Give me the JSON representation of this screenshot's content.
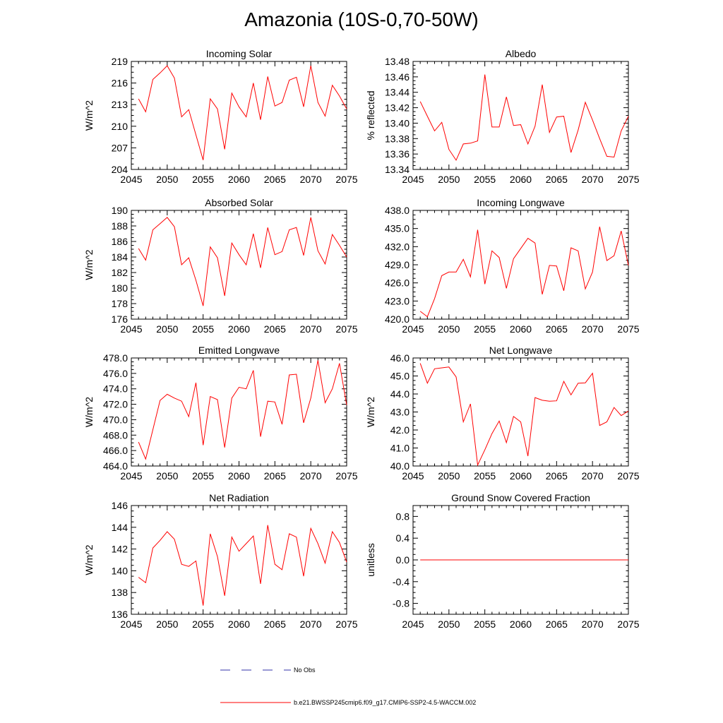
{
  "title": "Amazonia (10S-0,70-50W)",
  "legend": {
    "obs_label": "No Obs",
    "obs_color": "#3333aa",
    "model_label": "b.e21.BWSSP245cmip6.f09_g17.CMIP6-SSP2-4.5-WACCM.002",
    "model_color": "#ff0000"
  },
  "chart_data": [
    {
      "type": "line",
      "title": "Incoming Solar",
      "ylabel": "W/m^2",
      "xlim": [
        2045,
        2075
      ],
      "ylim": [
        204,
        219
      ],
      "yticks": [
        204,
        207,
        210,
        213,
        216,
        219
      ],
      "ytick_labels": [
        "204",
        "207",
        "210",
        "213",
        "216",
        "219"
      ],
      "xticks": [
        2045,
        2050,
        2055,
        2060,
        2065,
        2070,
        2075
      ],
      "xtick_labels": [
        "2045",
        "2050",
        "2055",
        "2060",
        "2065",
        "2070",
        "2075"
      ],
      "x": [
        2046,
        2047,
        2048,
        2049,
        2050,
        2051,
        2052,
        2053,
        2054,
        2055,
        2056,
        2057,
        2058,
        2059,
        2060,
        2061,
        2062,
        2063,
        2064,
        2065,
        2066,
        2067,
        2068,
        2069,
        2070,
        2071,
        2072,
        2073,
        2074,
        2075
      ],
      "values": [
        213.8,
        212.0,
        216.5,
        217.4,
        218.4,
        216.7,
        211.3,
        212.3,
        208.8,
        205.3,
        213.8,
        212.4,
        206.8,
        214.6,
        212.7,
        211.3,
        216.0,
        210.9,
        216.9,
        212.8,
        213.3,
        216.4,
        216.8,
        212.7,
        218.4,
        213.3,
        211.4,
        215.7,
        214.2,
        212.4
      ]
    },
    {
      "type": "line",
      "title": "Albedo",
      "ylabel": "% reflected",
      "xlim": [
        2045,
        2075
      ],
      "ylim": [
        13.34,
        13.48
      ],
      "yticks": [
        13.34,
        13.36,
        13.38,
        13.4,
        13.42,
        13.44,
        13.46,
        13.48
      ],
      "ytick_labels": [
        "13.34",
        "13.36",
        "13.38",
        "13.40",
        "13.42",
        "13.44",
        "13.46",
        "13.48"
      ],
      "xticks": [
        2045,
        2050,
        2055,
        2060,
        2065,
        2070,
        2075
      ],
      "xtick_labels": [
        "2045",
        "2050",
        "2055",
        "2060",
        "2065",
        "2070",
        "2075"
      ],
      "x": [
        2046,
        2047,
        2048,
        2049,
        2050,
        2051,
        2052,
        2053,
        2054,
        2055,
        2056,
        2057,
        2058,
        2059,
        2060,
        2061,
        2062,
        2063,
        2064,
        2065,
        2066,
        2067,
        2068,
        2069,
        2070,
        2071,
        2072,
        2073,
        2074,
        2075
      ],
      "values": [
        13.428,
        13.409,
        13.39,
        13.401,
        13.366,
        13.352,
        13.373,
        13.374,
        13.377,
        13.463,
        13.395,
        13.395,
        13.434,
        13.397,
        13.398,
        13.373,
        13.396,
        13.45,
        13.388,
        13.408,
        13.409,
        13.362,
        13.391,
        13.427,
        13.404,
        13.38,
        13.357,
        13.356,
        13.39,
        13.409
      ]
    },
    {
      "type": "line",
      "title": "Absorbed Solar",
      "ylabel": "W/m^2",
      "xlim": [
        2045,
        2075
      ],
      "ylim": [
        176,
        190
      ],
      "yticks": [
        176,
        178,
        180,
        182,
        184,
        186,
        188,
        190
      ],
      "ytick_labels": [
        "176",
        "178",
        "180",
        "182",
        "184",
        "186",
        "188",
        "190"
      ],
      "xticks": [
        2045,
        2050,
        2055,
        2060,
        2065,
        2070,
        2075
      ],
      "xtick_labels": [
        "2045",
        "2050",
        "2055",
        "2060",
        "2065",
        "2070",
        "2075"
      ],
      "x": [
        2046,
        2047,
        2048,
        2049,
        2050,
        2051,
        2052,
        2053,
        2054,
        2055,
        2056,
        2057,
        2058,
        2059,
        2060,
        2061,
        2062,
        2063,
        2064,
        2065,
        2066,
        2067,
        2068,
        2069,
        2070,
        2071,
        2072,
        2073,
        2074,
        2075
      ],
      "values": [
        185.1,
        183.6,
        187.5,
        188.3,
        189.1,
        187.9,
        183.0,
        183.9,
        181.0,
        177.7,
        185.3,
        183.9,
        179.0,
        185.8,
        184.3,
        183.0,
        187.0,
        182.6,
        187.8,
        184.3,
        184.7,
        187.5,
        187.8,
        184.2,
        189.1,
        184.8,
        183.1,
        186.9,
        185.5,
        184.0
      ]
    },
    {
      "type": "line",
      "title": "Incoming Longwave",
      "ylabel": "",
      "xlim": [
        2045,
        2075
      ],
      "ylim": [
        420.0,
        438.0
      ],
      "yticks": [
        420,
        423,
        426,
        429,
        432,
        435,
        438
      ],
      "ytick_labels": [
        "420.0",
        "423.0",
        "426.0",
        "429.0",
        "432.0",
        "435.0",
        "438.0"
      ],
      "xticks": [
        2045,
        2050,
        2055,
        2060,
        2065,
        2070,
        2075
      ],
      "xtick_labels": [
        "2045",
        "2050",
        "2055",
        "2060",
        "2065",
        "2070",
        "2075"
      ],
      "x": [
        2046,
        2047,
        2048,
        2049,
        2050,
        2051,
        2052,
        2053,
        2054,
        2055,
        2056,
        2057,
        2058,
        2059,
        2060,
        2061,
        2062,
        2063,
        2064,
        2065,
        2066,
        2067,
        2068,
        2069,
        2070,
        2071,
        2072,
        2073,
        2074,
        2075
      ],
      "values": [
        421.3,
        420.4,
        423.4,
        427.2,
        427.8,
        427.8,
        429.9,
        427.0,
        434.8,
        425.8,
        431.3,
        430.2,
        425.1,
        430.0,
        431.7,
        433.4,
        432.6,
        424.1,
        428.9,
        428.8,
        424.7,
        431.8,
        431.3,
        425.0,
        427.8,
        435.3,
        429.7,
        430.5,
        434.6,
        428.9
      ]
    },
    {
      "type": "line",
      "title": "Emitted Longwave",
      "ylabel": "W/m^2",
      "xlim": [
        2045,
        2075
      ],
      "ylim": [
        464.0,
        478.0
      ],
      "yticks": [
        464,
        466,
        468,
        470,
        472,
        474,
        476,
        478
      ],
      "ytick_labels": [
        "464.0",
        "466.0",
        "468.0",
        "470.0",
        "472.0",
        "474.0",
        "476.0",
        "478.0"
      ],
      "xticks": [
        2045,
        2050,
        2055,
        2060,
        2065,
        2070,
        2075
      ],
      "xtick_labels": [
        "2045",
        "2050",
        "2055",
        "2060",
        "2065",
        "2070",
        "2075"
      ],
      "x": [
        2046,
        2047,
        2048,
        2049,
        2050,
        2051,
        2052,
        2053,
        2054,
        2055,
        2056,
        2057,
        2058,
        2059,
        2060,
        2061,
        2062,
        2063,
        2064,
        2065,
        2066,
        2067,
        2068,
        2069,
        2070,
        2071,
        2072,
        2073,
        2074,
        2075
      ],
      "values": [
        467.1,
        464.9,
        468.7,
        472.5,
        473.3,
        472.8,
        472.4,
        470.4,
        474.8,
        466.7,
        473.0,
        472.6,
        466.4,
        472.8,
        474.2,
        474.0,
        476.4,
        467.8,
        472.4,
        472.3,
        469.4,
        475.8,
        475.9,
        469.6,
        472.8,
        477.7,
        472.2,
        474.0,
        477.3,
        471.9
      ]
    },
    {
      "type": "line",
      "title": "Net Longwave",
      "ylabel": "W/m^2",
      "xlim": [
        2045,
        2075
      ],
      "ylim": [
        40.0,
        46.0
      ],
      "yticks": [
        40,
        41,
        42,
        43,
        44,
        45,
        46
      ],
      "ytick_labels": [
        "40.0",
        "41.0",
        "42.0",
        "43.0",
        "44.0",
        "45.0",
        "46.0"
      ],
      "xticks": [
        2045,
        2050,
        2055,
        2060,
        2065,
        2070,
        2075
      ],
      "xtick_labels": [
        "2045",
        "2050",
        "2055",
        "2060",
        "2065",
        "2070",
        "2075"
      ],
      "x": [
        2046,
        2047,
        2048,
        2049,
        2050,
        2051,
        2052,
        2053,
        2054,
        2055,
        2056,
        2057,
        2058,
        2059,
        2060,
        2061,
        2062,
        2063,
        2064,
        2065,
        2066,
        2067,
        2068,
        2069,
        2070,
        2071,
        2072,
        2073,
        2074,
        2075
      ],
      "values": [
        45.7,
        44.6,
        45.4,
        45.45,
        45.5,
        44.95,
        42.45,
        43.45,
        40.05,
        40.9,
        41.8,
        42.5,
        41.3,
        42.75,
        42.45,
        40.55,
        43.8,
        43.65,
        43.6,
        43.62,
        44.7,
        43.95,
        44.6,
        44.62,
        45.15,
        42.25,
        42.45,
        43.25,
        42.8,
        43.05
      ]
    },
    {
      "type": "line",
      "title": "Net Radiation",
      "ylabel": "W/m^2",
      "xlim": [
        2045,
        2075
      ],
      "ylim": [
        136,
        146
      ],
      "yticks": [
        136,
        138,
        140,
        142,
        144,
        146
      ],
      "ytick_labels": [
        "136",
        "138",
        "140",
        "142",
        "144",
        "146"
      ],
      "xticks": [
        2045,
        2050,
        2055,
        2060,
        2065,
        2070,
        2075
      ],
      "xtick_labels": [
        "2045",
        "2050",
        "2055",
        "2060",
        "2065",
        "2070",
        "2075"
      ],
      "x": [
        2046,
        2047,
        2048,
        2049,
        2050,
        2051,
        2052,
        2053,
        2054,
        2055,
        2056,
        2057,
        2058,
        2059,
        2060,
        2061,
        2062,
        2063,
        2064,
        2065,
        2066,
        2067,
        2068,
        2069,
        2070,
        2071,
        2072,
        2073,
        2074,
        2075
      ],
      "values": [
        139.4,
        138.9,
        142.1,
        142.8,
        143.6,
        142.9,
        140.6,
        140.4,
        140.9,
        136.8,
        143.4,
        141.3,
        137.7,
        143.1,
        141.8,
        142.5,
        143.2,
        138.8,
        144.2,
        140.6,
        140.1,
        143.4,
        143.1,
        139.5,
        143.9,
        142.5,
        140.7,
        143.6,
        142.6,
        140.8
      ]
    },
    {
      "type": "line",
      "title": "Ground Snow Covered Fraction",
      "ylabel": "unitless",
      "xlim": [
        2045,
        2075
      ],
      "ylim": [
        -1.0,
        1.0
      ],
      "yticks": [
        -0.8,
        -0.4,
        0.0,
        0.4,
        0.8
      ],
      "ytick_labels": [
        "-0.8",
        "-0.4",
        "0.0",
        "0.4",
        "0.8"
      ],
      "xticks": [
        2045,
        2050,
        2055,
        2060,
        2065,
        2070,
        2075
      ],
      "xtick_labels": [
        "2045",
        "2050",
        "2055",
        "2060",
        "2065",
        "2070",
        "2075"
      ],
      "x": [
        2046,
        2075
      ],
      "values": [
        0.0,
        0.0
      ]
    }
  ]
}
